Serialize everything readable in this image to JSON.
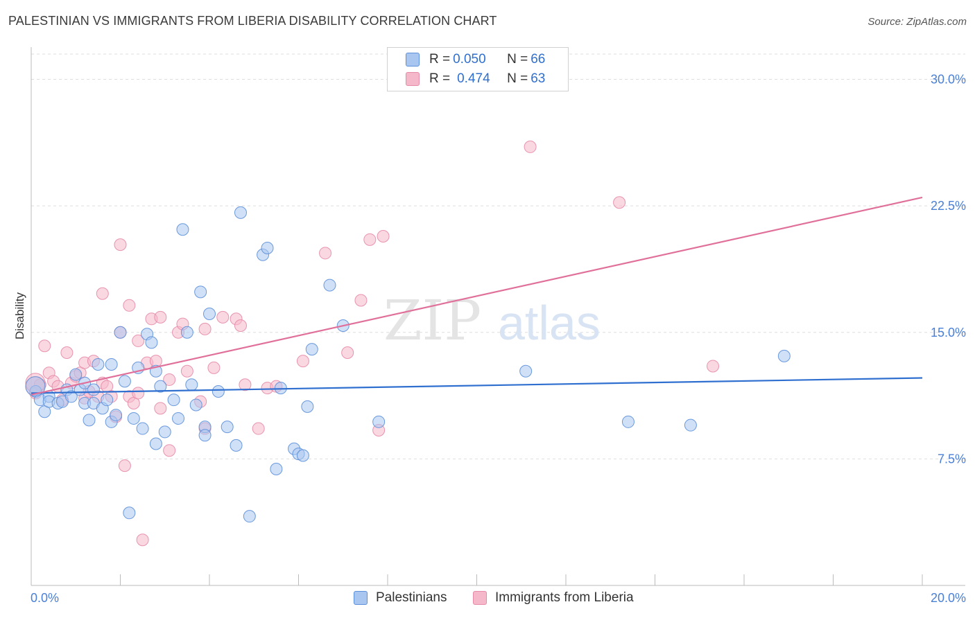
{
  "header": {
    "title": "PALESTINIAN VS IMMIGRANTS FROM LIBERIA DISABILITY CORRELATION CHART",
    "source_prefix": "Source: ",
    "source_name": "ZipAtlas.com"
  },
  "watermark": {
    "zip": "ZIP",
    "atlas": "atlas"
  },
  "legend_top": [
    {
      "r_label": "R = ",
      "r_value": "0.050",
      "n_label": "N = ",
      "n_value": "66"
    },
    {
      "r_label": "R = ",
      "r_value": "0.474",
      "n_label": "N = ",
      "n_value": "63"
    }
  ],
  "bottom_legend": [
    "Palestinians",
    "Immigrants from Liberia"
  ],
  "colors": {
    "blue_fill": "#a9c6f0",
    "blue_stroke": "#5b8fd9",
    "blue_line": "#2f6fcf",
    "pink_fill": "#f5b8cb",
    "pink_stroke": "#e58aa7",
    "pink_line": "#e0709a",
    "axis_label": "#4a7fd6",
    "grid": "#dddddd"
  },
  "chart_data": {
    "type": "scatter",
    "title": "PALESTINIAN VS IMMIGRANTS FROM LIBERIA DISABILITY CORRELATION CHART",
    "xlabel": "",
    "ylabel": "Disability",
    "xlim": [
      0,
      20
    ],
    "ylim": [
      0,
      31.5
    ],
    "x_tick_labels": [
      "0.0%",
      "20.0%"
    ],
    "y_ticks": [
      7.5,
      15.0,
      22.5,
      30.0
    ],
    "y_tick_labels": [
      "7.5%",
      "15.0%",
      "22.5%",
      "30.0%"
    ],
    "grid": true,
    "legend_position": "top-center",
    "series": [
      {
        "name": "Palestinians",
        "r": 0.05,
        "n": 66,
        "trend": [
          [
            0,
            11.4
          ],
          [
            20,
            12.3
          ]
        ],
        "points": [
          [
            0.1,
            11.5
          ],
          [
            0.2,
            11.0
          ],
          [
            0.3,
            10.3
          ],
          [
            0.4,
            11.2
          ],
          [
            0.4,
            10.9
          ],
          [
            0.6,
            10.8
          ],
          [
            0.7,
            10.9
          ],
          [
            0.8,
            11.6
          ],
          [
            0.9,
            11.2
          ],
          [
            1.0,
            12.5
          ],
          [
            1.1,
            11.6
          ],
          [
            1.2,
            12.0
          ],
          [
            1.2,
            10.8
          ],
          [
            1.3,
            9.8
          ],
          [
            1.4,
            11.6
          ],
          [
            1.4,
            10.8
          ],
          [
            1.5,
            13.1
          ],
          [
            1.6,
            10.5
          ],
          [
            1.7,
            11.0
          ],
          [
            1.8,
            9.7
          ],
          [
            1.8,
            13.1
          ],
          [
            1.9,
            10.1
          ],
          [
            2.0,
            15.0
          ],
          [
            2.1,
            12.1
          ],
          [
            2.2,
            4.3
          ],
          [
            2.3,
            9.9
          ],
          [
            2.4,
            12.9
          ],
          [
            2.5,
            9.3
          ],
          [
            2.6,
            14.9
          ],
          [
            2.7,
            14.4
          ],
          [
            2.8,
            8.4
          ],
          [
            2.8,
            12.7
          ],
          [
            2.9,
            11.8
          ],
          [
            3.0,
            9.1
          ],
          [
            3.2,
            11.0
          ],
          [
            3.3,
            9.9
          ],
          [
            3.4,
            21.1
          ],
          [
            3.5,
            15.0
          ],
          [
            3.6,
            11.9
          ],
          [
            3.7,
            10.7
          ],
          [
            3.8,
            17.4
          ],
          [
            3.9,
            9.4
          ],
          [
            3.9,
            8.9
          ],
          [
            4.0,
            16.1
          ],
          [
            4.2,
            11.5
          ],
          [
            4.4,
            9.4
          ],
          [
            4.6,
            8.3
          ],
          [
            4.7,
            22.1
          ],
          [
            4.9,
            4.1
          ],
          [
            5.2,
            19.6
          ],
          [
            5.3,
            20.0
          ],
          [
            5.5,
            6.9
          ],
          [
            5.6,
            11.7
          ],
          [
            5.9,
            8.1
          ],
          [
            6.0,
            7.8
          ],
          [
            6.1,
            7.7
          ],
          [
            6.2,
            10.6
          ],
          [
            6.3,
            14.0
          ],
          [
            6.7,
            17.8
          ],
          [
            7.0,
            15.4
          ],
          [
            7.8,
            9.7
          ],
          [
            11.1,
            12.7
          ],
          [
            13.4,
            9.7
          ],
          [
            14.8,
            9.5
          ],
          [
            16.9,
            13.6
          ],
          [
            0.0,
            11.8
          ]
        ]
      },
      {
        "name": "Immigrants from Liberia",
        "r": 0.474,
        "n": 63,
        "trend": [
          [
            0,
            11.3
          ],
          [
            20,
            23.0
          ]
        ],
        "points": [
          [
            0.0,
            11.8
          ],
          [
            0.1,
            11.4
          ],
          [
            0.2,
            11.9
          ],
          [
            0.3,
            14.2
          ],
          [
            0.4,
            12.6
          ],
          [
            0.5,
            12.1
          ],
          [
            0.6,
            11.8
          ],
          [
            0.7,
            11.0
          ],
          [
            0.8,
            13.8
          ],
          [
            0.9,
            12.0
          ],
          [
            1.0,
            12.4
          ],
          [
            1.1,
            12.6
          ],
          [
            1.2,
            11.1
          ],
          [
            1.2,
            13.2
          ],
          [
            1.3,
            11.5
          ],
          [
            1.4,
            13.3
          ],
          [
            1.5,
            11.2
          ],
          [
            1.6,
            12.0
          ],
          [
            1.6,
            17.3
          ],
          [
            1.7,
            11.8
          ],
          [
            1.8,
            11.2
          ],
          [
            1.9,
            10.0
          ],
          [
            2.0,
            15.0
          ],
          [
            2.0,
            20.2
          ],
          [
            2.1,
            7.1
          ],
          [
            2.2,
            11.2
          ],
          [
            2.2,
            16.6
          ],
          [
            2.3,
            10.8
          ],
          [
            2.4,
            11.4
          ],
          [
            2.4,
            14.5
          ],
          [
            2.5,
            2.7
          ],
          [
            2.6,
            13.2
          ],
          [
            2.7,
            15.8
          ],
          [
            2.8,
            13.3
          ],
          [
            2.9,
            10.5
          ],
          [
            2.9,
            15.9
          ],
          [
            3.1,
            12.2
          ],
          [
            3.1,
            8.0
          ],
          [
            3.3,
            15.0
          ],
          [
            3.4,
            15.5
          ],
          [
            3.5,
            12.7
          ],
          [
            3.8,
            10.9
          ],
          [
            3.9,
            9.3
          ],
          [
            3.9,
            15.2
          ],
          [
            4.1,
            12.9
          ],
          [
            4.3,
            15.9
          ],
          [
            4.6,
            15.8
          ],
          [
            4.7,
            15.4
          ],
          [
            4.8,
            11.9
          ],
          [
            5.1,
            9.3
          ],
          [
            5.3,
            11.7
          ],
          [
            5.5,
            11.8
          ],
          [
            6.1,
            13.3
          ],
          [
            6.6,
            19.7
          ],
          [
            7.1,
            13.8
          ],
          [
            7.4,
            16.9
          ],
          [
            7.6,
            20.5
          ],
          [
            7.8,
            9.2
          ],
          [
            7.9,
            20.7
          ],
          [
            11.2,
            26.0
          ],
          [
            13.2,
            22.7
          ],
          [
            15.3,
            13.0
          ],
          [
            0.0,
            12.0
          ]
        ]
      }
    ]
  }
}
